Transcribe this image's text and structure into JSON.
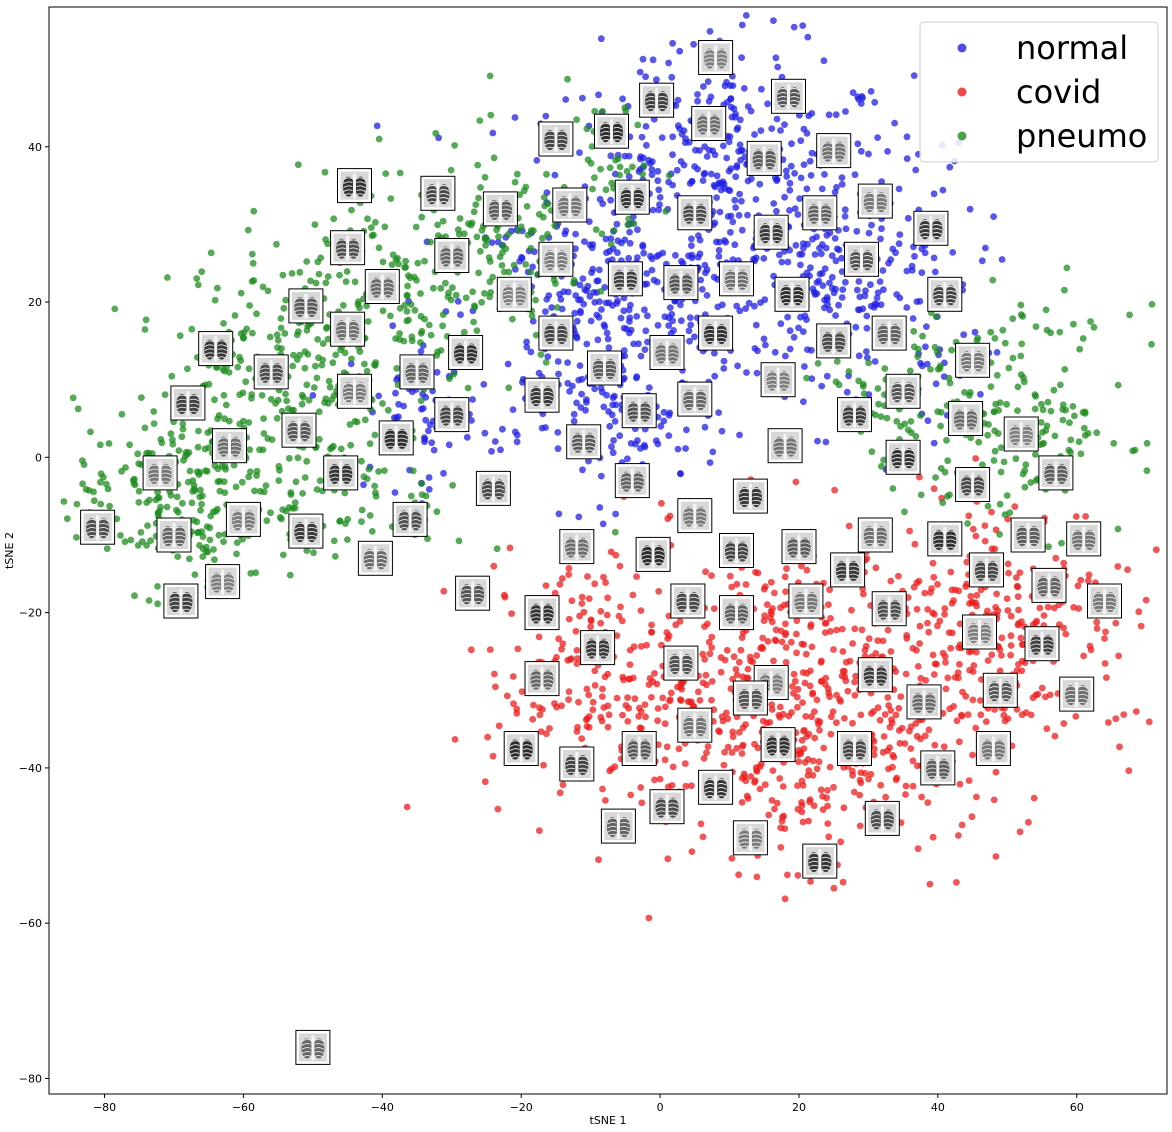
{
  "chart_data": {
    "type": "scatter",
    "title": "",
    "xlabel": "tSNE 1",
    "ylabel": "tSNE 2",
    "xlim": [
      -88,
      73
    ],
    "ylim": [
      -82,
      58
    ],
    "xticks": [
      -80,
      -60,
      -40,
      -20,
      0,
      20,
      40,
      60
    ],
    "yticks": [
      -80,
      -60,
      -40,
      -20,
      0,
      20,
      40
    ],
    "grid": false,
    "legend_position": "top-right",
    "series": [
      {
        "name": "normal",
        "color": "#1f1fe6",
        "regions": [
          {
            "cx": 8,
            "cy": 30,
            "sx": 14,
            "sy": 11,
            "n": 520
          },
          {
            "cx": -10,
            "cy": 18,
            "sx": 9,
            "sy": 9,
            "n": 220
          },
          {
            "cx": 28,
            "cy": 22,
            "sx": 9,
            "sy": 9,
            "n": 200
          },
          {
            "cx": -35,
            "cy": 6,
            "sx": 5,
            "sy": 5,
            "n": 60
          },
          {
            "cx": -5,
            "cy": 4,
            "sx": 7,
            "sy": 4,
            "n": 80
          },
          {
            "cx": 10,
            "cy": 44,
            "sx": 6,
            "sy": 4,
            "n": 50
          }
        ]
      },
      {
        "name": "covid",
        "color": "#ee1c1c",
        "regions": [
          {
            "cx": 20,
            "cy": -30,
            "sx": 17,
            "sy": 10,
            "n": 640
          },
          {
            "cx": 50,
            "cy": -20,
            "sx": 9,
            "sy": 8,
            "n": 200
          },
          {
            "cx": -10,
            "cy": -27,
            "sx": 7,
            "sy": 7,
            "n": 140
          },
          {
            "cx": 20,
            "cy": -42,
            "sx": 10,
            "sy": 5,
            "n": 90
          }
        ]
      },
      {
        "name": "pneumo",
        "color": "#1d8c1d",
        "regions": [
          {
            "cx": -70,
            "cy": -5,
            "sx": 7,
            "sy": 6,
            "n": 220
          },
          {
            "cx": -55,
            "cy": 12,
            "sx": 8,
            "sy": 8,
            "n": 230
          },
          {
            "cx": -38,
            "cy": 20,
            "sx": 7,
            "sy": 8,
            "n": 180
          },
          {
            "cx": -22,
            "cy": 26,
            "sx": 6,
            "sy": 7,
            "n": 120
          },
          {
            "cx": -8,
            "cy": 38,
            "sx": 5,
            "sy": 5,
            "n": 50
          },
          {
            "cx": 52,
            "cy": 5,
            "sx": 8,
            "sy": 7,
            "n": 170
          },
          {
            "cx": 35,
            "cy": 8,
            "sx": 6,
            "sy": 5,
            "n": 80
          },
          {
            "cx": -45,
            "cy": -6,
            "sx": 9,
            "sy": 4,
            "n": 80
          }
        ]
      }
    ],
    "thumbnails": [
      [
        8,
        51.5
      ],
      [
        -0.5,
        46
      ],
      [
        18.5,
        46.5
      ],
      [
        7,
        43
      ],
      [
        -7,
        42
      ],
      [
        -15,
        41
      ],
      [
        15,
        38.5
      ],
      [
        25,
        39.5
      ],
      [
        -44,
        35
      ],
      [
        -32,
        34
      ],
      [
        -23,
        32
      ],
      [
        -13,
        32.5
      ],
      [
        -4,
        33.5
      ],
      [
        5,
        31.5
      ],
      [
        23,
        31.5
      ],
      [
        31,
        33
      ],
      [
        39,
        29.5
      ],
      [
        -45,
        27
      ],
      [
        -30,
        26
      ],
      [
        -15,
        25.5
      ],
      [
        16,
        29
      ],
      [
        29,
        25.5
      ],
      [
        -40,
        22
      ],
      [
        -21,
        21
      ],
      [
        -5,
        23
      ],
      [
        3,
        22.5
      ],
      [
        11,
        23
      ],
      [
        19,
        21
      ],
      [
        41,
        21
      ],
      [
        -51,
        19.5
      ],
      [
        -45,
        16.5
      ],
      [
        -28,
        13.5
      ],
      [
        -15,
        16
      ],
      [
        -8,
        11.5
      ],
      [
        1,
        13.5
      ],
      [
        8,
        16
      ],
      [
        25,
        15
      ],
      [
        33,
        16
      ],
      [
        45,
        12.5
      ],
      [
        -64,
        14
      ],
      [
        -56,
        11
      ],
      [
        -35,
        11
      ],
      [
        -44,
        8.5
      ],
      [
        -17,
        8
      ],
      [
        -3,
        6
      ],
      [
        5,
        7.5
      ],
      [
        17,
        10
      ],
      [
        28,
        5.5
      ],
      [
        35,
        8.5
      ],
      [
        44,
        5
      ],
      [
        52,
        3
      ],
      [
        -68,
        7
      ],
      [
        -52,
        3.5
      ],
      [
        -62,
        1.5
      ],
      [
        -38,
        2.5
      ],
      [
        -30,
        5.5
      ],
      [
        -11,
        2
      ],
      [
        18,
        1.5
      ],
      [
        35,
        0
      ],
      [
        45,
        -3.5
      ],
      [
        57,
        -2
      ],
      [
        -72,
        -2
      ],
      [
        -46,
        -2
      ],
      [
        -24,
        -4
      ],
      [
        -4,
        -3
      ],
      [
        5,
        -7.5
      ],
      [
        13,
        -5
      ],
      [
        -81,
        -9
      ],
      [
        -70,
        -10
      ],
      [
        -60,
        -8
      ],
      [
        -51,
        -9.5
      ],
      [
        -36,
        -8
      ],
      [
        -41,
        -13
      ],
      [
        -63,
        -16
      ],
      [
        -69,
        -18.5
      ],
      [
        -27,
        -17.5
      ],
      [
        -12,
        -11.5
      ],
      [
        -1,
        -12.5
      ],
      [
        11,
        -12
      ],
      [
        20,
        -11.5
      ],
      [
        31,
        -10
      ],
      [
        41,
        -10.5
      ],
      [
        47,
        -14.5
      ],
      [
        53,
        -10
      ],
      [
        61,
        -10.5
      ],
      [
        -17,
        -20
      ],
      [
        4,
        -18.5
      ],
      [
        11,
        -20
      ],
      [
        21,
        -18.5
      ],
      [
        27,
        -14.5
      ],
      [
        33,
        -19.5
      ],
      [
        56,
        -16.5
      ],
      [
        64,
        -18.5
      ],
      [
        -9,
        -24.5
      ],
      [
        3,
        -26.5
      ],
      [
        -17,
        -28.5
      ],
      [
        16,
        -29
      ],
      [
        31,
        -28
      ],
      [
        13,
        -31
      ],
      [
        38,
        -31.5
      ],
      [
        46,
        -22.5
      ],
      [
        55,
        -24
      ],
      [
        49,
        -30
      ],
      [
        60,
        -30.5
      ],
      [
        -20,
        -37.5
      ],
      [
        -12,
        -39.5
      ],
      [
        -3,
        -37.5
      ],
      [
        5,
        -34.5
      ],
      [
        17,
        -37
      ],
      [
        28,
        -37.5
      ],
      [
        40,
        -40
      ],
      [
        48,
        -37.5
      ],
      [
        8,
        -42.5
      ],
      [
        1,
        -45
      ],
      [
        -6,
        -47.5
      ],
      [
        13,
        -49
      ],
      [
        23,
        -52
      ],
      [
        32,
        -46.5
      ],
      [
        -50,
        -76
      ]
    ]
  },
  "legend": {
    "items": [
      {
        "label": "normal",
        "color": "#1f1fe6"
      },
      {
        "label": "covid",
        "color": "#ee1c1c"
      },
      {
        "label": "pneumo",
        "color": "#1d8c1d"
      }
    ]
  }
}
